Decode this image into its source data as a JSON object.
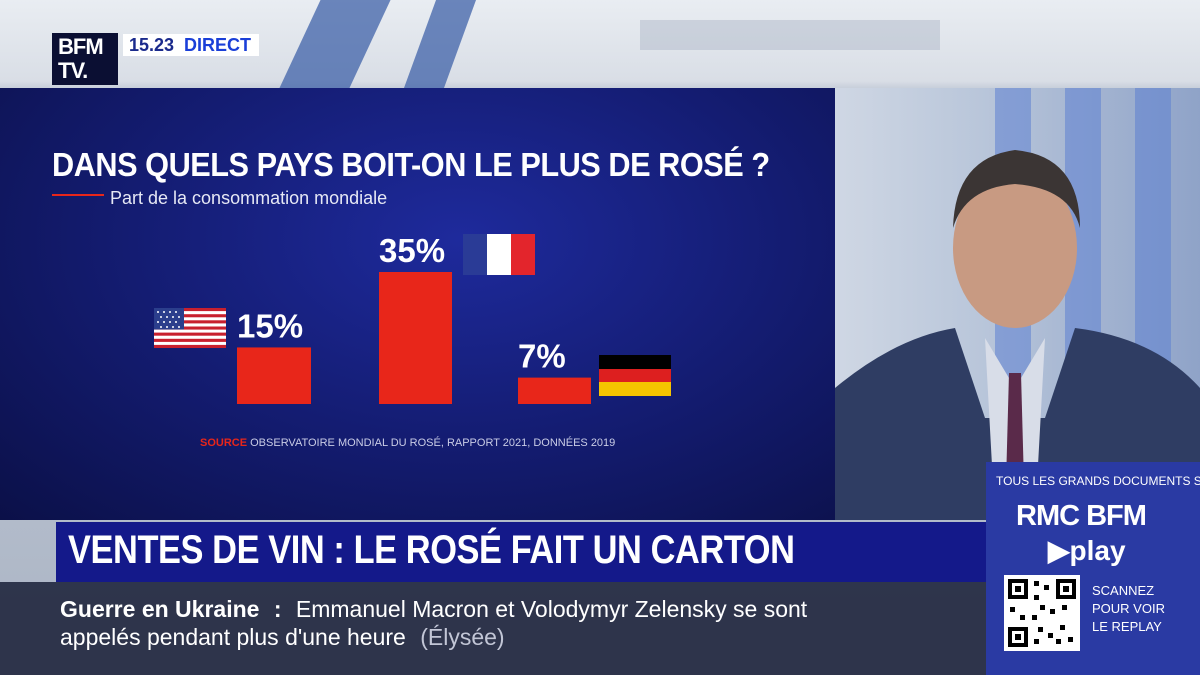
{
  "channel": {
    "logo_line1": "BFM",
    "logo_line2": "TV.",
    "time": "15.23",
    "live": "DIRECT"
  },
  "chart_data": {
    "type": "bar",
    "title": "DANS QUELS PAYS BOIT-ON LE PLUS DE ROSÉ ?",
    "subtitle": "Part de la consommation mondiale",
    "categories": [
      "États-Unis",
      "France",
      "Allemagne"
    ],
    "values": [
      15,
      35,
      7
    ],
    "labels": [
      "15%",
      "35%",
      "7%"
    ],
    "flags": [
      "us-flag-icon",
      "france-flag-icon",
      "germany-flag-icon"
    ],
    "ylim": [
      0,
      35
    ],
    "bar_color": "#e8261a",
    "source_label": "SOURCE",
    "source_text": "OBSERVATOIRE MONDIAL DU ROSÉ, RAPPORT 2021, DONNÉES 2019"
  },
  "headline": "VENTES DE VIN : LE ROSÉ FAIT UN CARTON",
  "ticker": {
    "label": "Guerre en Ukraine",
    "sep": ":",
    "text1": "Emmanuel Macron et Volodymyr Zelensky se sont",
    "text2": "appelés pendant plus d'une heure",
    "source": "(Élysée)"
  },
  "promo": {
    "top": "TOUS LES GRANDS DOCUMENTS SUR",
    "brand": "RMC BFM",
    "play": "▶play",
    "scan1": "SCANNEZ",
    "scan2": "POUR VOIR",
    "scan3": "LE REPLAY"
  },
  "colors": {
    "panel": "#131b6e",
    "accent_red": "#e8261a",
    "headline_bg": "#14198a"
  }
}
